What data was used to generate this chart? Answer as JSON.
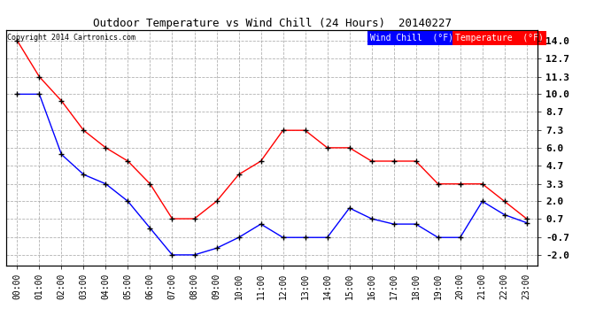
{
  "title": "Outdoor Temperature vs Wind Chill (24 Hours)  20140227",
  "copyright": "Copyright 2014 Cartronics.com",
  "background_color": "#ffffff",
  "plot_bg_color": "#ffffff",
  "grid_color": "#aaaaaa",
  "x_labels": [
    "00:00",
    "01:00",
    "02:00",
    "03:00",
    "04:00",
    "05:00",
    "06:00",
    "07:00",
    "08:00",
    "09:00",
    "10:00",
    "11:00",
    "12:00",
    "13:00",
    "14:00",
    "15:00",
    "16:00",
    "17:00",
    "18:00",
    "19:00",
    "20:00",
    "21:00",
    "22:00",
    "23:00"
  ],
  "y_ticks": [
    -2.0,
    -0.7,
    0.7,
    2.0,
    3.3,
    4.7,
    6.0,
    7.3,
    8.7,
    10.0,
    11.3,
    12.7,
    14.0
  ],
  "y_tick_labels": [
    "-2.0",
    "-0.7",
    "0.7",
    "2.0",
    "3.3",
    "4.7",
    "6.0",
    "7.3",
    "8.7",
    "10.0",
    "11.3",
    "12.7",
    "14.0"
  ],
  "ylim": [
    -2.8,
    14.8
  ],
  "temp_color": "#ff0000",
  "wind_color": "#0000ff",
  "marker": "+",
  "marker_color": "#000000",
  "marker_size": 4,
  "line_width": 1.0,
  "temperature": [
    14.0,
    11.3,
    9.5,
    7.3,
    6.0,
    5.0,
    3.3,
    0.7,
    0.7,
    2.0,
    4.0,
    5.0,
    7.3,
    7.3,
    6.0,
    6.0,
    5.0,
    5.0,
    5.0,
    3.3,
    3.3,
    3.3,
    2.0,
    0.7
  ],
  "wind_chill": [
    10.0,
    10.0,
    5.5,
    4.0,
    3.3,
    2.0,
    0.0,
    -2.0,
    -2.0,
    -1.5,
    -0.7,
    0.3,
    -0.7,
    -0.7,
    -0.7,
    1.5,
    0.7,
    0.3,
    0.3,
    -0.7,
    -0.7,
    2.0,
    1.0,
    0.4
  ],
  "legend_wind_label": "Wind Chill  (°F)",
  "legend_temp_label": "Temperature  (°F)",
  "legend_wind_bg": "#0000ff",
  "legend_temp_bg": "#ff0000"
}
